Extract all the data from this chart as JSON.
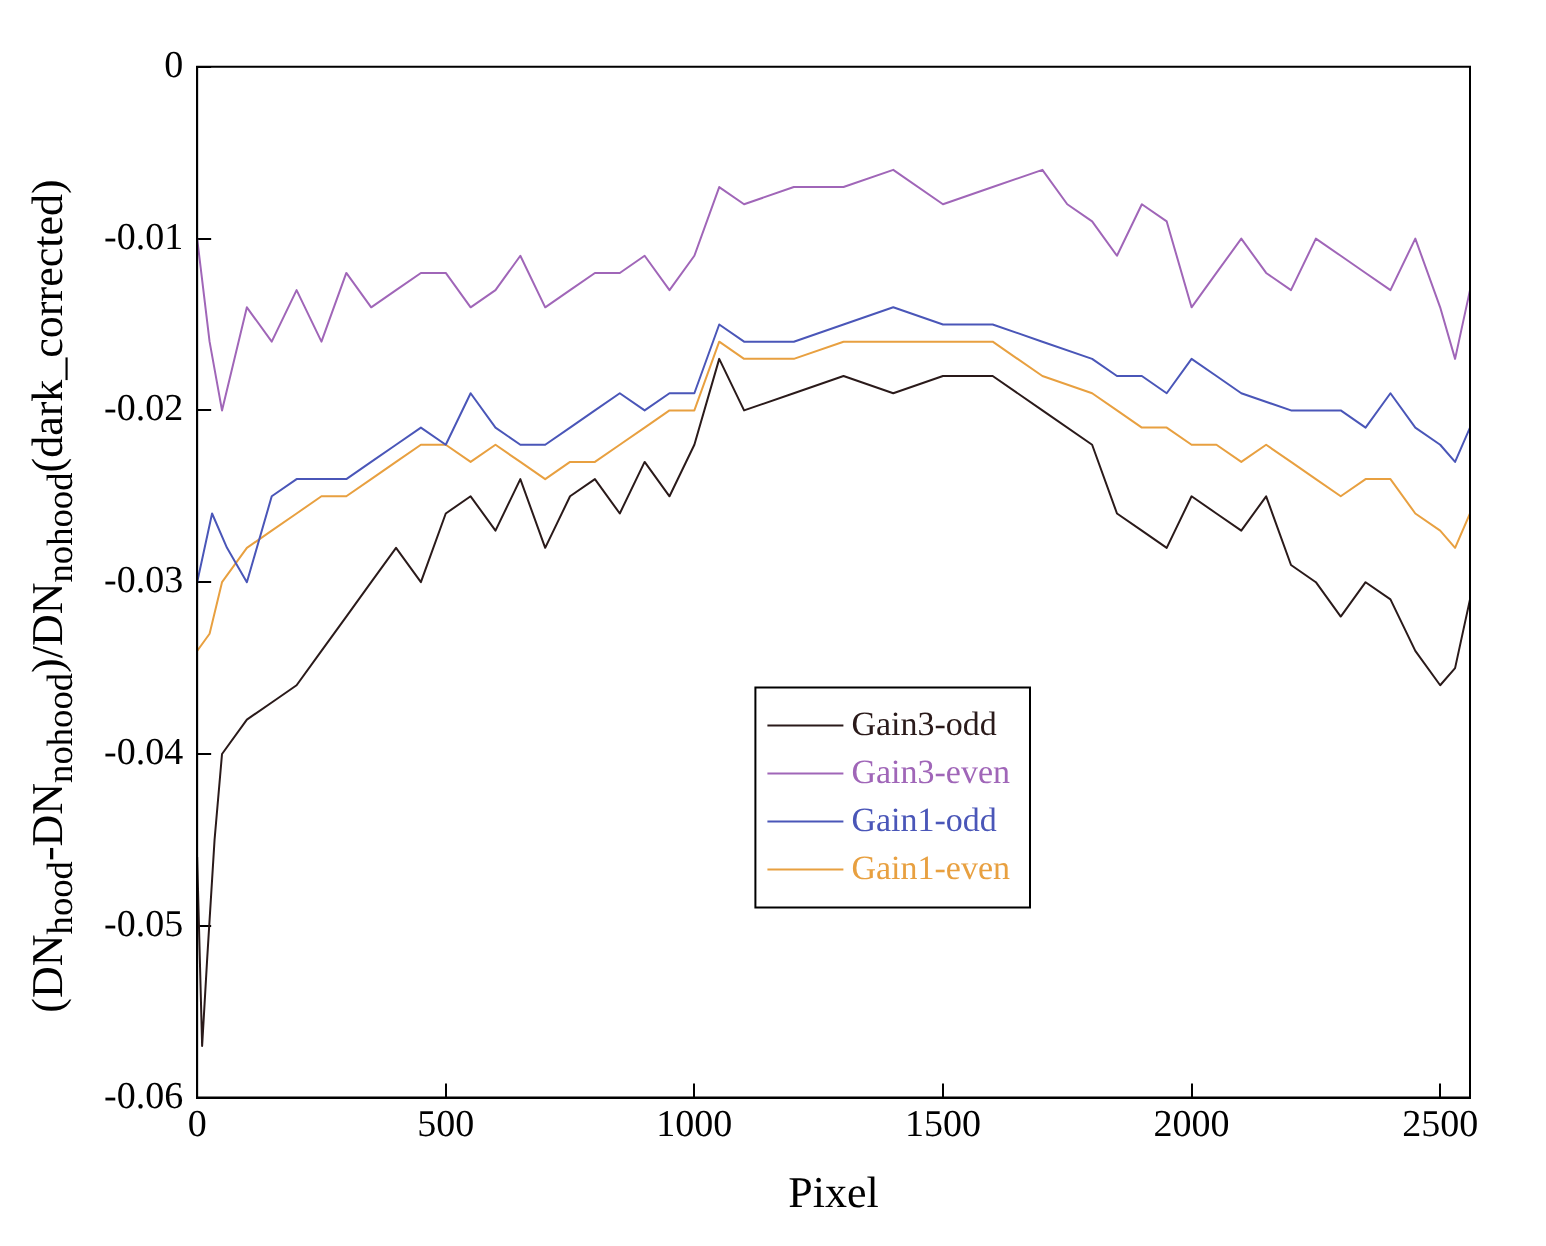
{
  "chart_data": {
    "type": "line",
    "xlabel": "Pixel",
    "ylabel": "(DN$_{hood}$-DN$_{nohood}$)/DN$_{nohood}$(dark_corrected)",
    "xlim": [
      0,
      2560
    ],
    "xticks": [
      0,
      500,
      1000,
      1500,
      2000,
      2500
    ],
    "ylim": [
      -0.06,
      0
    ],
    "yticks": [
      -0.06,
      -0.05,
      -0.04,
      -0.03,
      -0.02,
      -0.01,
      0
    ],
    "grid": false,
    "legend": "bottom right",
    "marker": "none",
    "line_style": "solid",
    "series": [
      {
        "name": "Gain3-odd",
        "color": "#2a1a1a",
        "x": [
          0,
          10,
          20,
          35,
          50,
          100,
          150,
          200,
          250,
          300,
          350,
          400,
          450,
          500,
          550,
          600,
          650,
          700,
          750,
          800,
          850,
          900,
          950,
          1000,
          1050,
          1100,
          1200,
          1300,
          1400,
          1500,
          1600,
          1700,
          1800,
          1850,
          1900,
          1950,
          2000,
          2050,
          2100,
          2150,
          2200,
          2250,
          2300,
          2350,
          2400,
          2450,
          2500,
          2530,
          2560
        ],
        "values": [
          -0.046,
          -0.057,
          -0.052,
          -0.045,
          -0.04,
          -0.038,
          -0.037,
          -0.036,
          -0.034,
          -0.032,
          -0.03,
          -0.028,
          -0.03,
          -0.026,
          -0.025,
          -0.027,
          -0.024,
          -0.028,
          -0.025,
          -0.024,
          -0.026,
          -0.023,
          -0.025,
          -0.022,
          -0.017,
          -0.02,
          -0.019,
          -0.018,
          -0.019,
          -0.018,
          -0.018,
          -0.02,
          -0.022,
          -0.026,
          -0.027,
          -0.028,
          -0.025,
          -0.026,
          -0.027,
          -0.025,
          -0.029,
          -0.03,
          -0.032,
          -0.03,
          -0.031,
          -0.034,
          -0.036,
          -0.035,
          -0.031
        ]
      },
      {
        "name": "Gain3-even",
        "color": "#a066b8",
        "x": [
          0,
          25,
          50,
          100,
          150,
          200,
          250,
          300,
          350,
          400,
          450,
          500,
          550,
          600,
          650,
          700,
          750,
          800,
          850,
          900,
          950,
          1000,
          1050,
          1100,
          1200,
          1300,
          1400,
          1500,
          1600,
          1700,
          1750,
          1800,
          1850,
          1900,
          1950,
          2000,
          2050,
          2100,
          2150,
          2200,
          2250,
          2300,
          2350,
          2400,
          2450,
          2500,
          2530,
          2560
        ],
        "values": [
          -0.01,
          -0.016,
          -0.02,
          -0.014,
          -0.016,
          -0.013,
          -0.016,
          -0.012,
          -0.014,
          -0.013,
          -0.012,
          -0.012,
          -0.014,
          -0.013,
          -0.011,
          -0.014,
          -0.013,
          -0.012,
          -0.012,
          -0.011,
          -0.013,
          -0.011,
          -0.007,
          -0.008,
          -0.007,
          -0.007,
          -0.006,
          -0.008,
          -0.007,
          -0.006,
          -0.008,
          -0.009,
          -0.011,
          -0.008,
          -0.009,
          -0.014,
          -0.012,
          -0.01,
          -0.012,
          -0.013,
          -0.01,
          -0.011,
          -0.012,
          -0.013,
          -0.01,
          -0.014,
          -0.017,
          -0.013
        ]
      },
      {
        "name": "Gain1-odd",
        "color": "#4a56b8",
        "x": [
          0,
          30,
          60,
          100,
          150,
          200,
          250,
          300,
          350,
          400,
          450,
          500,
          550,
          600,
          650,
          700,
          750,
          800,
          850,
          900,
          950,
          1000,
          1050,
          1100,
          1200,
          1300,
          1400,
          1500,
          1600,
          1700,
          1800,
          1850,
          1900,
          1950,
          2000,
          2050,
          2100,
          2200,
          2300,
          2350,
          2400,
          2450,
          2500,
          2530,
          2560
        ],
        "values": [
          -0.03,
          -0.026,
          -0.028,
          -0.03,
          -0.025,
          -0.024,
          -0.024,
          -0.024,
          -0.023,
          -0.022,
          -0.021,
          -0.022,
          -0.019,
          -0.021,
          -0.022,
          -0.022,
          -0.021,
          -0.02,
          -0.019,
          -0.02,
          -0.019,
          -0.019,
          -0.015,
          -0.016,
          -0.016,
          -0.015,
          -0.014,
          -0.015,
          -0.015,
          -0.016,
          -0.017,
          -0.018,
          -0.018,
          -0.019,
          -0.017,
          -0.018,
          -0.019,
          -0.02,
          -0.02,
          -0.021,
          -0.019,
          -0.021,
          -0.022,
          -0.023,
          -0.021
        ]
      },
      {
        "name": "Gain1-even",
        "color": "#e8a040",
        "x": [
          0,
          25,
          50,
          100,
          150,
          200,
          250,
          300,
          350,
          400,
          450,
          500,
          550,
          600,
          650,
          700,
          750,
          800,
          850,
          900,
          950,
          1000,
          1050,
          1100,
          1200,
          1300,
          1400,
          1500,
          1600,
          1700,
          1800,
          1850,
          1900,
          1950,
          2000,
          2050,
          2100,
          2150,
          2200,
          2250,
          2300,
          2350,
          2400,
          2450,
          2500,
          2530,
          2560
        ],
        "values": [
          -0.034,
          -0.033,
          -0.03,
          -0.028,
          -0.027,
          -0.026,
          -0.025,
          -0.025,
          -0.024,
          -0.023,
          -0.022,
          -0.022,
          -0.023,
          -0.022,
          -0.023,
          -0.024,
          -0.023,
          -0.023,
          -0.022,
          -0.021,
          -0.02,
          -0.02,
          -0.016,
          -0.017,
          -0.017,
          -0.016,
          -0.016,
          -0.016,
          -0.016,
          -0.018,
          -0.019,
          -0.02,
          -0.021,
          -0.021,
          -0.022,
          -0.022,
          -0.023,
          -0.022,
          -0.023,
          -0.024,
          -0.025,
          -0.024,
          -0.024,
          -0.026,
          -0.027,
          -0.028,
          -0.026
        ]
      }
    ]
  }
}
